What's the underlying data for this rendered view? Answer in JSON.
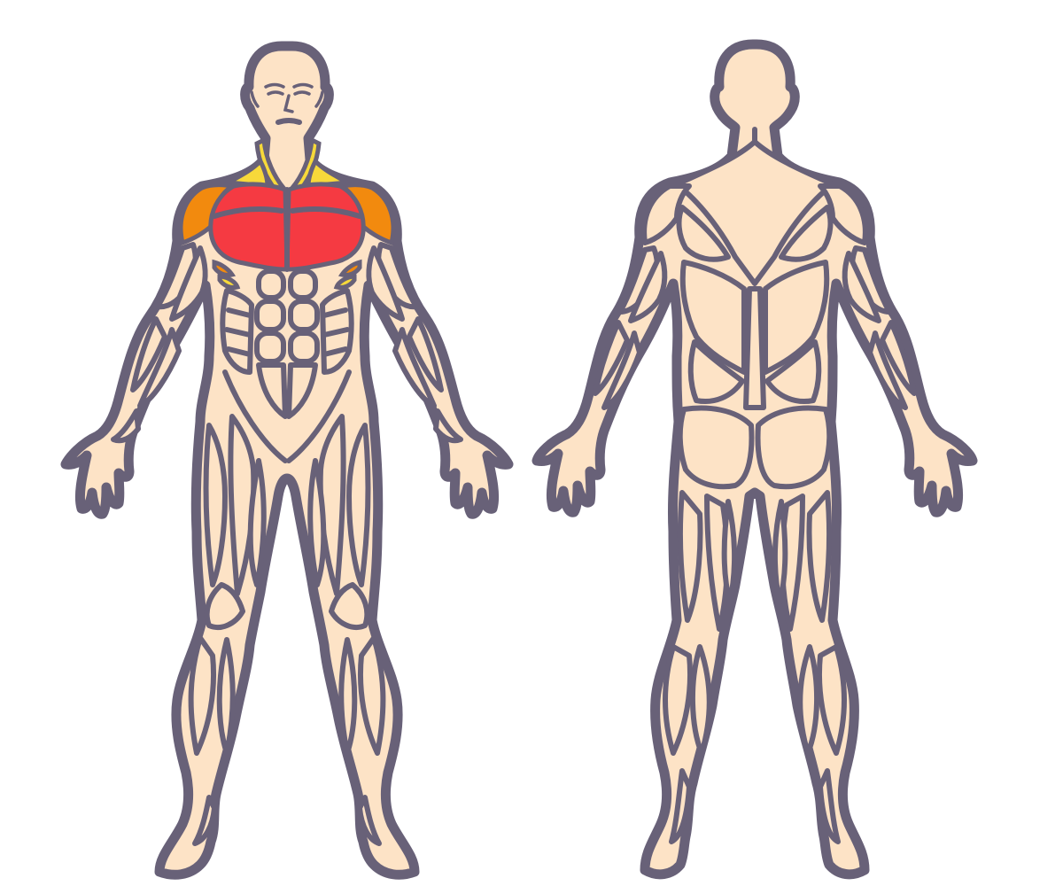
{
  "colors": {
    "skin": "#FDE3C6",
    "outline": "#686178",
    "primary": "#F53A42",
    "secondary": "#F28A0E",
    "tertiary": "#F7D93A"
  },
  "legend": [
    {
      "group": "chest",
      "level": "primary"
    },
    {
      "group": "front-shoulders",
      "level": "secondary"
    },
    {
      "group": "serratus",
      "level": "secondary"
    },
    {
      "group": "upper-trapezius",
      "level": "tertiary"
    },
    {
      "group": "obliques-upper",
      "level": "tertiary"
    }
  ]
}
